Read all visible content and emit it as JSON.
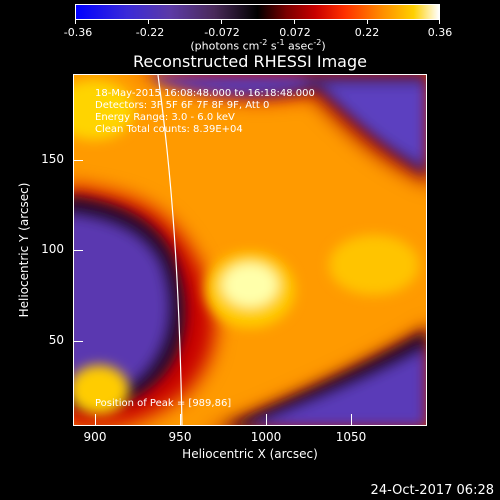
{
  "colorbar": {
    "tick_labels": [
      "-0.36",
      "-0.22",
      "-0.072",
      "0.072",
      "0.22",
      "0.36"
    ],
    "units_prefix": "(photons cm",
    "units_exp1": "-2",
    "units_mid1": " s",
    "units_exp2": "-1",
    "units_mid2": " asec",
    "units_exp3": "-2",
    "units_suffix": ")"
  },
  "title": "Reconstructed RHESSI Image",
  "info": {
    "time_line": "18-May-2015 16:08:48.000 to 16:18:48.000",
    "detectors_line": "Detectors: 3F 5F 6F 7F 8F 9F, Att 0",
    "energy_line": "Energy Range: 3.0 - 6.0 keV",
    "clean_line": "Clean     Total counts: 8.39E+04",
    "peak_line": "Position of Peak = [989,86]"
  },
  "axes": {
    "x_title": "Heliocentric X (arcsec)",
    "y_title": "Heliocentric Y (arcsec)",
    "x_ticks": [
      "900",
      "950",
      "1000",
      "1050"
    ],
    "y_ticks": [
      "50",
      "100",
      "150"
    ]
  },
  "footer": {
    "date": "24-Oct-2017 06:28"
  },
  "colors": {
    "background": "#000000",
    "text": "#ffffff",
    "limb_line": "#ffffff"
  },
  "chart_data": {
    "type": "heatmap",
    "title": "Reconstructed RHESSI Image",
    "xlabel": "Heliocentric X (arcsec)",
    "ylabel": "Heliocentric Y (arcsec)",
    "colorbar_range": [
      -0.36,
      0.36
    ],
    "colorbar_ticks": [
      -0.36,
      -0.22,
      -0.072,
      0.072,
      0.22,
      0.36
    ],
    "peak_position": [
      989,
      86
    ]
  }
}
